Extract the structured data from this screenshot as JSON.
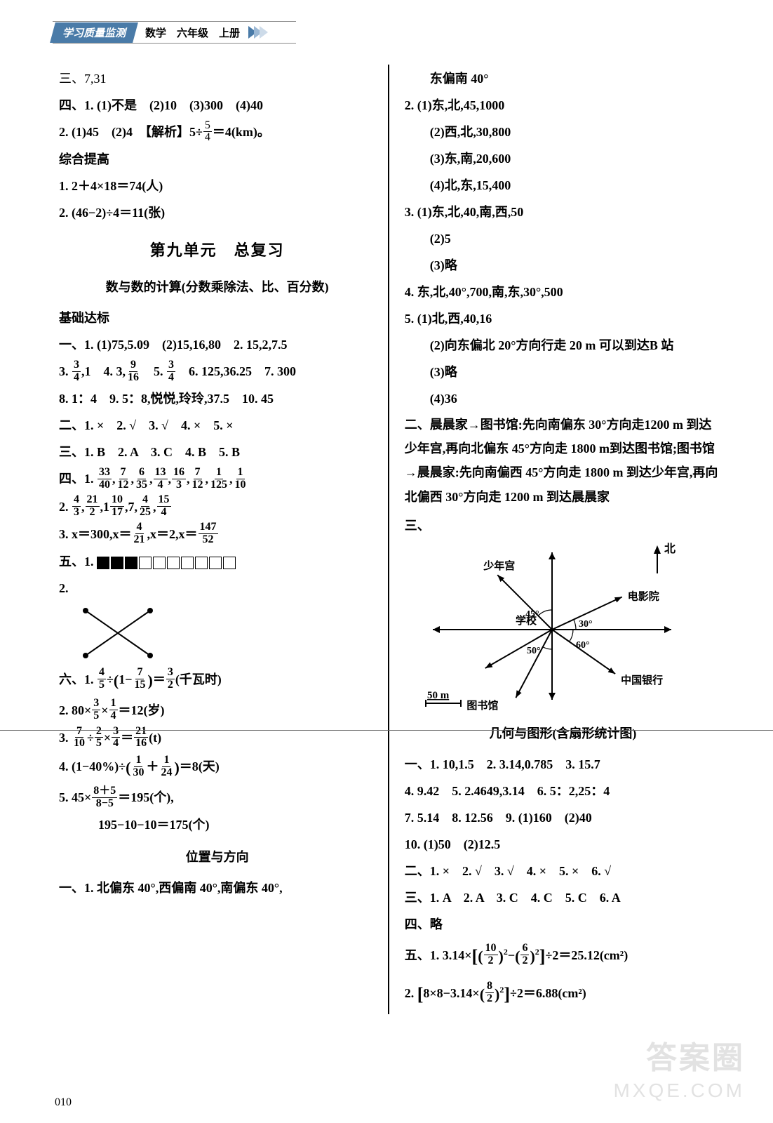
{
  "header": {
    "badge": "学习质量监测",
    "subject": "数学　六年级　上册"
  },
  "page_number": "010",
  "watermark_main": "答案圈",
  "watermark_sub": "MXQE.COM",
  "left": {
    "l1": "三、7,31",
    "l2": "四、1.  (1)不是　(2)10　(3)300　(4)40",
    "l3a": "2.  (1)45　(2)4　【解析】5÷",
    "l3b": "＝4(km)。",
    "hdr_zh": "综合提高",
    "l4": "1.  2＋4×18＝74(人)",
    "l5": "2.  (46−2)÷4＝11(张)",
    "unit_title": "第九单元　总复习",
    "sub1": "数与数的计算(分数乘除法、比、百分数)",
    "hdr_jc": "基础达标",
    "a1": "一、1.  (1)75,5.09　(2)15,16,80　2.  15,2,7.5",
    "a3_parts": {
      "p1": "3.  ",
      "p2": ",1　4.  3,",
      "p3": "　5.  ",
      "p4": "　6.  125,36.25　7.  300"
    },
    "a8": "8.  1：4　9.  5：8,悦悦,玲玲,37.5　10.  45",
    "a_two": "二、1.  ×　2.  √　3.  √　4.  ×　5.  ×",
    "a_three": "三、1.  B　2.  A　3.  C　4.  B　5.  B",
    "a_four1_prefix": "四、1.  ",
    "fracs_row1": [
      [
        "33",
        "40"
      ],
      [
        "7",
        "12"
      ],
      [
        "6",
        "35"
      ],
      [
        "13",
        "4"
      ],
      [
        "16",
        "3"
      ],
      [
        "7",
        "12"
      ],
      [
        "1",
        "125"
      ],
      [
        "1",
        "10"
      ]
    ],
    "a_four2_prefix": "2.  ",
    "fracs_row2_a": [
      [
        "4",
        "3"
      ],
      [
        "21",
        "2"
      ]
    ],
    "row2_mid": ",1",
    "fracs_row2_b": [
      [
        "10",
        "17"
      ]
    ],
    "row2_mid2": ",7,",
    "fracs_row2_c": [
      [
        "4",
        "25"
      ],
      [
        "15",
        "4"
      ]
    ],
    "a_four3_a": "3.  x＝300,x＝",
    "a_four3_b": ",x＝2,x＝",
    "a_five1": "五、1.  ",
    "a_five2": "2. ",
    "a_six1_a": "六、1.  ",
    "a_six1_b": "÷",
    "a_six1_c": "1−",
    "a_six1_d": "＝",
    "a_six1_e": "(千瓦时)",
    "a_six2_a": "2.  80×",
    "a_six2_b": "×",
    "a_six2_c": "＝12(岁)",
    "a_six3_a": "3.  ",
    "a_six3_b": "÷",
    "a_six3_c": "×",
    "a_six3_d": "＝",
    "a_six3_e": "(t)",
    "a_six4_a": "4.  (1−40%)÷",
    "a_six4_b": "＋",
    "a_six4_c": "＝8(天)",
    "a_six5_a": "5.  45×",
    "a_six5_b": "＝195(个),",
    "a_six5_c": "195−10−10＝175(个)",
    "sub2": "位置与方向",
    "b1": "一、1.  北偏东 40°,西偏南 40°,南偏东 40°,",
    "fractions": {
      "f5_4": [
        "5",
        "4"
      ],
      "f3_4": [
        "3",
        "4"
      ],
      "f9_16": [
        "9",
        "16"
      ],
      "f4_21": [
        "4",
        "21"
      ],
      "f147_52": [
        "147",
        "52"
      ],
      "f4_5": [
        "4",
        "5"
      ],
      "f7_15": [
        "7",
        "15"
      ],
      "f3_2": [
        "3",
        "2"
      ],
      "f3_5": [
        "3",
        "5"
      ],
      "f1_4": [
        "1",
        "4"
      ],
      "f7_10": [
        "7",
        "10"
      ],
      "f2_5": [
        "2",
        "5"
      ],
      "f21_16": [
        "21",
        "16"
      ],
      "f1_30": [
        "1",
        "30"
      ],
      "f1_24": [
        "1",
        "24"
      ],
      "f8p5_8m5": [
        "8＋5",
        "8−5"
      ]
    }
  },
  "right": {
    "r0": "东偏南 40°",
    "r1": "2.  (1)东,北,45,1000",
    "r2": "(2)西,北,30,800",
    "r3": "(3)东,南,20,600",
    "r4": "(4)北,东,15,400",
    "r5": "3.  (1)东,北,40,南,西,50",
    "r6": "(2)5",
    "r7": "(3)略",
    "r8": "4.  东,北,40°,700,南,东,30°,500",
    "r9": "5.  (1)北,西,40,16",
    "r10": "(2)向东偏北 20°方向行走 20 m 可以到达B 站",
    "r11": "(3)略",
    "r12": "(4)36",
    "r13": "二、晨晨家→图书馆:先向南偏东 30°方向走1200 m 到达少年宫,再向北偏东 45°方向走 1800 m到达图书馆;图书馆→晨晨家:先向南偏西 45°方向走 1800 m 到达少年宫,再向北偏西 30°方向走 1200 m 到达晨晨家",
    "r_three": "三、",
    "compass": {
      "labels": {
        "north": "北",
        "school": "学校",
        "youth": "少年宫",
        "cinema": "电影院",
        "library": "图书馆",
        "bank": "中国银行",
        "a45": "45°",
        "a30": "30°",
        "a50": "50°",
        "a60": "60°"
      },
      "scale": "50 m",
      "angles": [
        135,
        25,
        -35,
        -112,
        -148
      ],
      "radius": 110
    },
    "sub3": "几何与图形(含扇形统计图)",
    "g1": "一、1.  10,1.5　2.  3.14,0.785　3.  15.7",
    "g2": "4.  9.42　5.  2.4649,3.14　6.  5：2,25：4",
    "g3": "7.  5.14　8.  12.56　9.  (1)160　(2)40",
    "g4": "10.  (1)50　(2)12.5",
    "g5": "二、1.  ×　2.  √　3.  √　4.  ×　5.  ×　6.  √",
    "g6": "三、1.  A　2.  A　3.  C　4.  C　5.  C　6.  A",
    "g7": "四、略",
    "g8_a": "五、1.  3.14×",
    "g8_b": "−",
    "g8_c": "÷2＝25.12(cm²)",
    "g9_a": "2.  ",
    "g9_b": "8×8−3.14×",
    "g9_c": "÷2＝6.88(cm²)",
    "fractions": {
      "f10_2": [
        "10",
        "2"
      ],
      "f6_2": [
        "6",
        "2"
      ],
      "f8_2": [
        "8",
        "2"
      ]
    }
  },
  "hr_positions": [
    1040
  ]
}
